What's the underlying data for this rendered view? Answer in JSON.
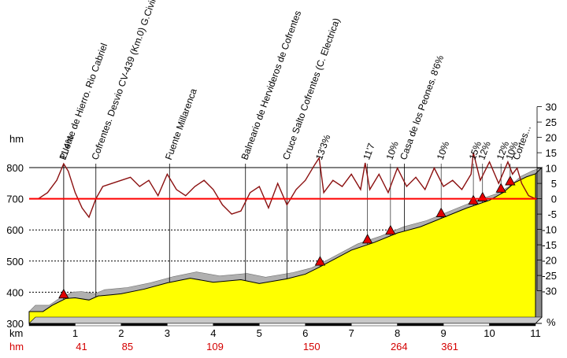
{
  "chart_data": {
    "type": "area",
    "left_axis_unit": "hm",
    "bottom_axis_unit": "km",
    "bottom_hm_label": "hm",
    "right_axis_unit": "%",
    "xlim": [
      0,
      11
    ],
    "ylim": [
      300,
      800
    ],
    "x_ticks": [
      "1",
      "2",
      "3",
      "4",
      "5",
      "6",
      "7",
      "8",
      "9",
      "10",
      "11"
    ],
    "y_ticks": [
      "300",
      "400",
      "500",
      "600",
      "700",
      "800"
    ],
    "slope_ticks": [
      "30",
      "25",
      "20",
      "15",
      "10",
      "5",
      "0",
      "-5",
      "-10",
      "-15",
      "-20",
      "-25",
      "-30"
    ],
    "reference_line_slope_zero": 0,
    "elevation_profile": {
      "x": [
        0,
        0.3,
        0.5,
        0.8,
        1.0,
        1.3,
        1.5,
        1.8,
        2.0,
        2.5,
        3.0,
        3.5,
        4.0,
        4.6,
        5.0,
        5.6,
        6.0,
        6.3,
        7.0,
        7.5,
        8.0,
        8.5,
        9.0,
        9.5,
        10.0,
        10.3,
        10.55,
        10.8,
        11.0
      ],
      "y": [
        338,
        338,
        358,
        380,
        382,
        375,
        388,
        392,
        395,
        410,
        430,
        445,
        432,
        440,
        428,
        443,
        458,
        480,
        535,
        560,
        590,
        610,
        640,
        670,
        695,
        720,
        752,
        770,
        780
      ]
    },
    "slope_profile_percent": {
      "x": [
        0,
        0.2,
        0.4,
        0.6,
        0.75,
        0.85,
        1.0,
        1.15,
        1.3,
        1.45,
        1.6,
        1.8,
        2.0,
        2.2,
        2.4,
        2.6,
        2.8,
        3.0,
        3.2,
        3.4,
        3.6,
        3.8,
        4.0,
        4.2,
        4.4,
        4.6,
        4.8,
        5.0,
        5.2,
        5.4,
        5.6,
        5.8,
        6.0,
        6.2,
        6.3,
        6.4,
        6.6,
        6.8,
        7.0,
        7.2,
        7.3,
        7.4,
        7.6,
        7.8,
        8.0,
        8.2,
        8.4,
        8.6,
        8.8,
        9.0,
        9.2,
        9.4,
        9.6,
        9.65,
        9.8,
        10.0,
        10.2,
        10.4,
        10.5,
        10.6,
        10.7,
        10.85,
        11.0
      ],
      "y": [
        0,
        0,
        2,
        6,
        11.4,
        9,
        2,
        -3,
        -6,
        0,
        4,
        5,
        6,
        7,
        4,
        6,
        1,
        8,
        3,
        1,
        4,
        6,
        3,
        -2,
        -5,
        -4,
        2,
        4,
        -3,
        5,
        -2,
        3,
        6,
        11,
        13.3,
        2,
        6,
        4,
        8,
        3,
        11.7,
        3,
        8,
        2,
        10,
        4,
        7,
        3,
        10,
        4,
        6,
        3,
        8,
        15,
        6,
        12,
        5,
        12,
        8,
        10,
        5,
        1,
        0
      ]
    },
    "waypoints": [
      {
        "label": "Puente de Hierro. Rio Cabriel",
        "x": 0.75
      },
      {
        "label": "Cofrentes. Desvio CV-439 (Km.0) G.Civil",
        "x": 1.45
      },
      {
        "label": "Fuente Millarenca",
        "x": 3.05
      },
      {
        "label": "Balneario de Hervideros de Cofrentes",
        "x": 4.7
      },
      {
        "label": "Cruce Salto Cofrentes (C. Electrica)",
        "x": 5.6
      },
      {
        "label": "Casa de los Peones. 8'6%",
        "x": 8.15
      }
    ],
    "slope_labels": [
      {
        "label": "11'4%",
        "x": 0.75
      },
      {
        "label": "13'3%",
        "x": 6.32
      },
      {
        "label": "11'7",
        "x": 7.35
      },
      {
        "label": "10%",
        "x": 7.85
      },
      {
        "label": "10%",
        "x": 8.95
      },
      {
        "label": "15%",
        "x": 9.65
      },
      {
        "label": "12%",
        "x": 9.85
      },
      {
        "label": "12%",
        "x": 10.25
      },
      {
        "label": "10%",
        "x": 10.45
      },
      {
        "label": "Cortes...",
        "x": 10.6
      }
    ],
    "hm_markers": [
      {
        "label": "41",
        "x": 1.0
      },
      {
        "label": "85",
        "x": 2.0
      },
      {
        "label": "109",
        "x": 3.9
      },
      {
        "label": "150",
        "x": 6.0
      },
      {
        "label": "264",
        "x": 7.9
      },
      {
        "label": "361",
        "x": 9.0
      }
    ],
    "colors": {
      "fill": "#ffff00",
      "slope_line": "#8b1010",
      "reference_line": "#ff0000",
      "grid": "#000000",
      "hm_text": "#d40000",
      "road_shadow": "#b0b0b0"
    },
    "grid": true
  }
}
